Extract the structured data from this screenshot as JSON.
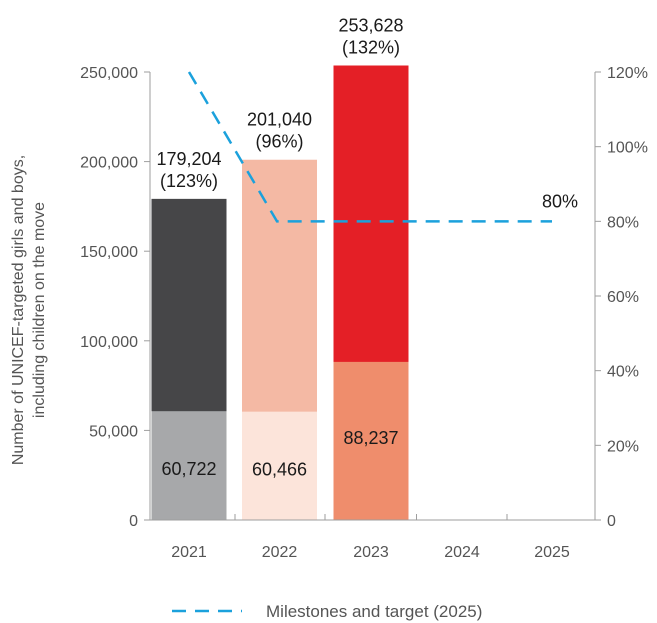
{
  "chart_data": {
    "type": "bar",
    "categories": [
      "2021",
      "2022",
      "2023",
      "2024",
      "2025"
    ],
    "series": [
      {
        "values": [
          179204,
          201040,
          253628,
          null,
          null
        ],
        "colors": [
          "#464648",
          "#f4b9a4",
          "#e41f26",
          null,
          null
        ],
        "labels": [
          "179,204",
          "201,040",
          "253,628",
          "",
          ""
        ],
        "percent_labels": [
          "(123%)",
          "(96%)",
          "(132%)",
          "",
          ""
        ]
      },
      {
        "values": [
          60722,
          60466,
          88237,
          null,
          null
        ],
        "colors": [
          "#a7a8aa",
          "#fce4da",
          "#ef8d6c",
          null,
          null
        ],
        "labels": [
          "60,722",
          "60,466",
          "88,237",
          "",
          ""
        ]
      },
      {
        "name": "Milestones and target (2025)",
        "axis": "right",
        "x": [
          "2021",
          "2022",
          "2023",
          "2024",
          "2025"
        ],
        "values": [
          120,
          80,
          80,
          80,
          80
        ],
        "color": "#1ba1dc",
        "style": "dashed",
        "end_label": "80%"
      }
    ],
    "ylabel": "Number of UNICEF-targeted girls and boys, including children on the move",
    "ylim": [
      0,
      250000
    ],
    "yticks": [
      0,
      50000,
      100000,
      150000,
      200000,
      250000
    ],
    "ytick_labels": [
      "0",
      "50,000",
      "100,000",
      "150,000",
      "200,000",
      "250,000"
    ],
    "y2lim": [
      0,
      120
    ],
    "y2ticks": [
      0,
      20,
      40,
      60,
      80,
      100,
      120
    ],
    "y2tick_labels": [
      "0",
      "20%",
      "40%",
      "60%",
      "80%",
      "100%",
      "120%"
    ],
    "grid": false,
    "legend_position": "bottom"
  }
}
